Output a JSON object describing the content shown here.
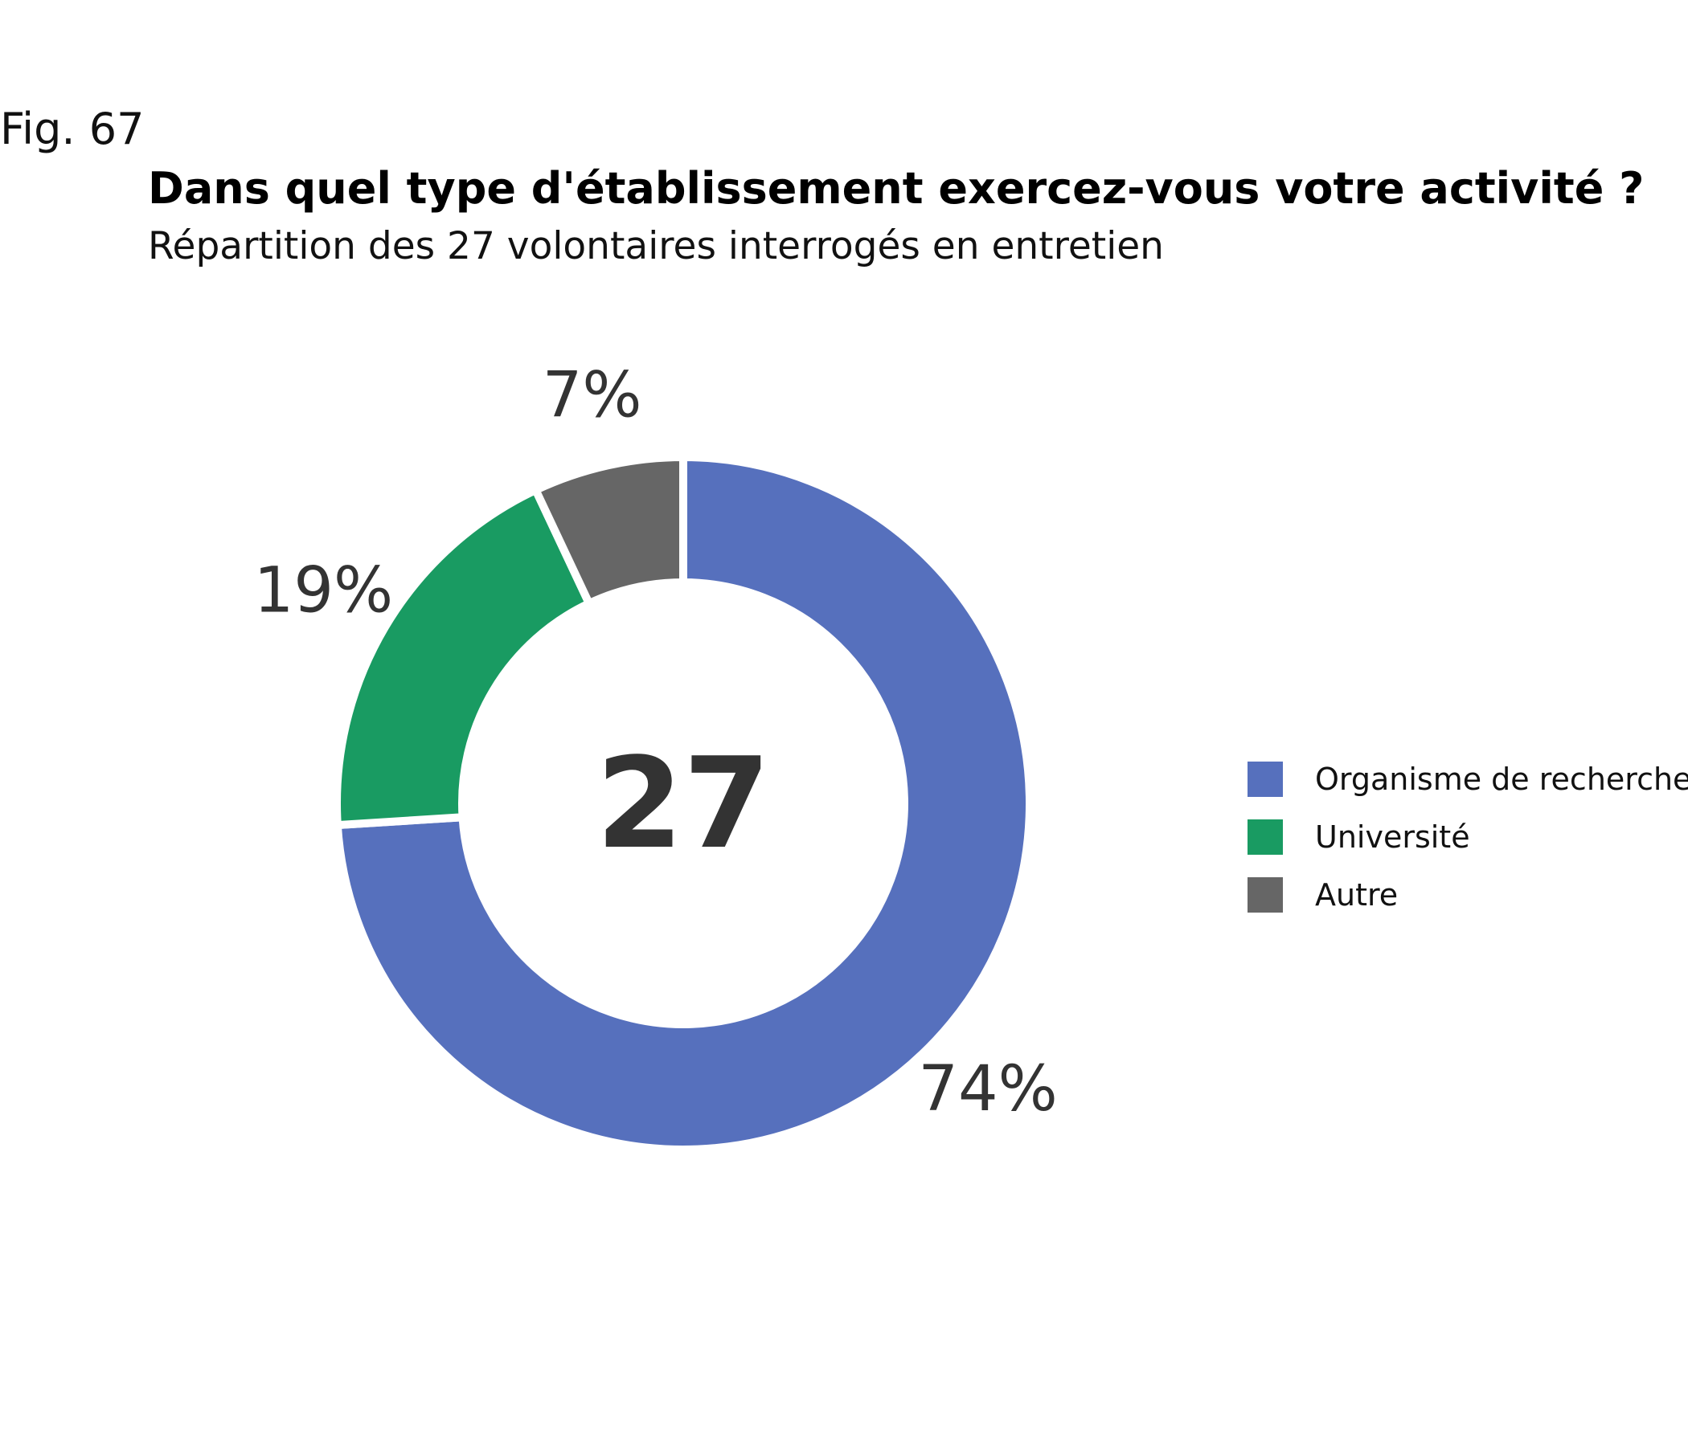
{
  "figure": {
    "label": "Fig. 67",
    "title": "Dans quel type d'établissement exercez-vous votre activité ?",
    "subtitle": "Répartition des 27 volontaires interrogés en entretien"
  },
  "chart_data": {
    "type": "pie",
    "donut": true,
    "center_label": "27",
    "categories": [
      "Organisme de recherche",
      "Université",
      "Autre"
    ],
    "values": [
      74,
      19,
      7
    ],
    "data_labels": [
      "74%",
      "19%",
      "7%"
    ],
    "colors": [
      "#5670BD",
      "#199B62",
      "#666666"
    ],
    "legend_position": "right"
  }
}
